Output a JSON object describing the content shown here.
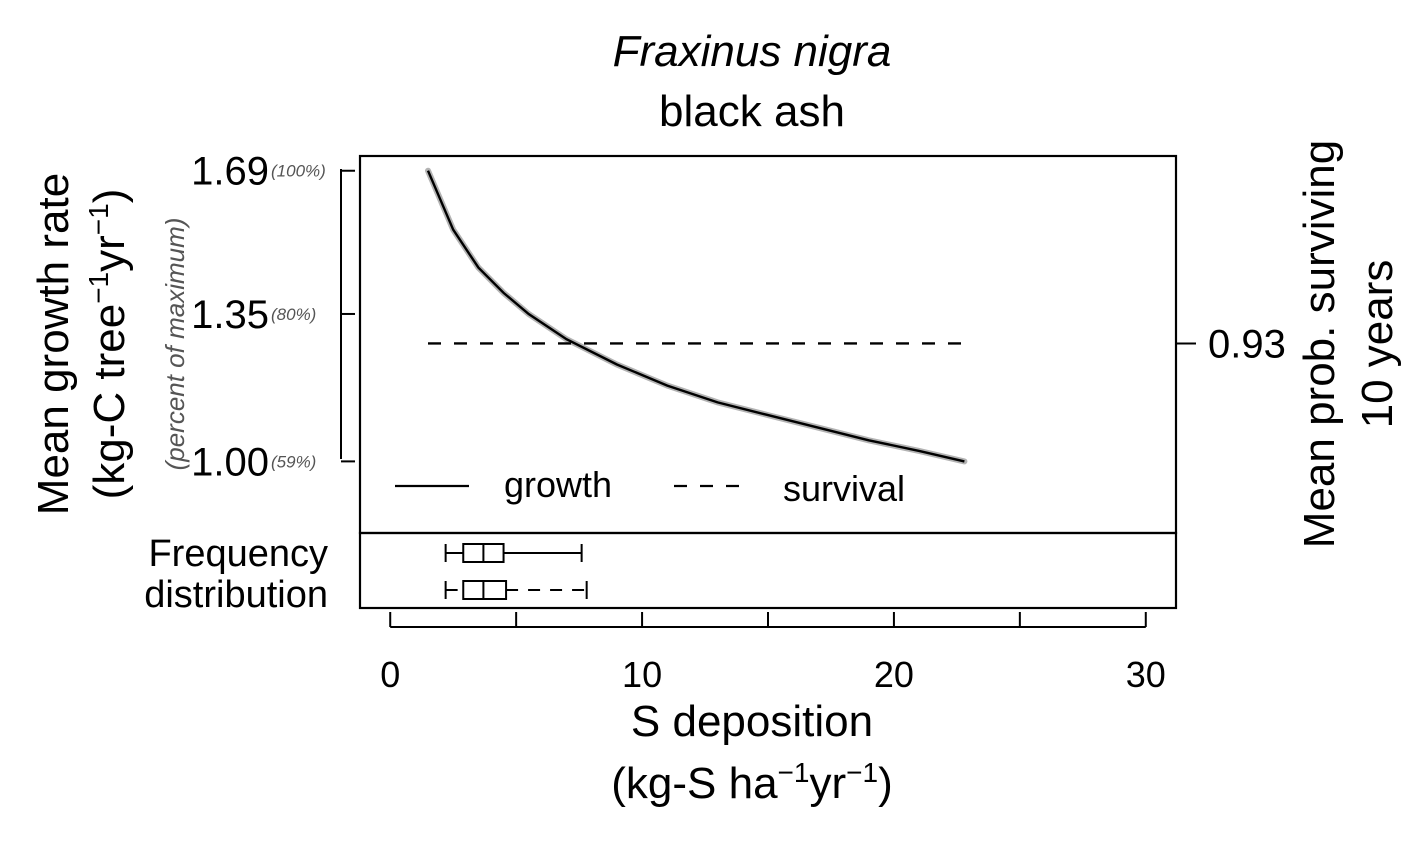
{
  "chart_data": {
    "type": "line",
    "title_species": "Fraxinus nigra",
    "title_common": "black ash",
    "ylabel_line1": "Mean growth rate",
    "ylabel_line2_parts": [
      "(kg-C tree",
      "−1",
      "yr",
      "−1",
      ")"
    ],
    "ylabel_secondary": "(percent of maximum)",
    "y2label_line1": "Mean prob. surviving",
    "y2label_line2": "10 years",
    "xlabel_line1": "S deposition",
    "xlabel_line2_parts": [
      "(kg-S ha",
      "−1",
      "yr",
      "−1",
      ")"
    ],
    "xlim": [
      -1.2,
      31.2
    ],
    "ylim": [
      0.83,
      1.725
    ],
    "x_ticks": [
      0,
      10,
      20,
      30
    ],
    "x_tick_labels": [
      "0",
      "10",
      "20",
      "30"
    ],
    "x_minor_ticks": [
      5,
      15,
      25
    ],
    "y_ticks": [
      {
        "value": 1.69,
        "label": "1.69",
        "pct": "(100%)"
      },
      {
        "value": 1.35,
        "label": "1.35",
        "pct": "(80%)"
      },
      {
        "value": 1.0,
        "label": "1.00",
        "pct": "(59%)"
      }
    ],
    "y2_ticks": [
      {
        "value": 1.28,
        "label": "0.93"
      }
    ],
    "series": [
      {
        "name": "growth",
        "style": "solid",
        "color": "#000000",
        "band_color": "#b3b3b3",
        "x": [
          1.5,
          2.5,
          3.5,
          4.5,
          5.5,
          7,
          9,
          11,
          13,
          15,
          17,
          19,
          21,
          22.8
        ],
        "y": [
          1.69,
          1.55,
          1.46,
          1.4,
          1.35,
          1.29,
          1.23,
          1.18,
          1.14,
          1.11,
          1.08,
          1.05,
          1.025,
          1.0
        ]
      },
      {
        "name": "survival",
        "style": "dashed",
        "color": "#000000",
        "x": [
          1.5,
          22.8
        ],
        "y": [
          1.28,
          1.28
        ]
      }
    ],
    "legend": {
      "position": "bottom",
      "entries": [
        "growth",
        "survival"
      ]
    },
    "freq_label_line1": "Frequency",
    "freq_label_line2": "distribution",
    "boxplots": [
      {
        "series": "growth",
        "whisker_style": "solid",
        "min": 2.2,
        "q1": 2.9,
        "median": 3.7,
        "q3": 4.5,
        "max": 7.6
      },
      {
        "series": "survival",
        "whisker_style": "dashed",
        "min": 2.2,
        "q1": 2.9,
        "median": 3.7,
        "q3": 4.6,
        "max": 7.8
      }
    ]
  }
}
